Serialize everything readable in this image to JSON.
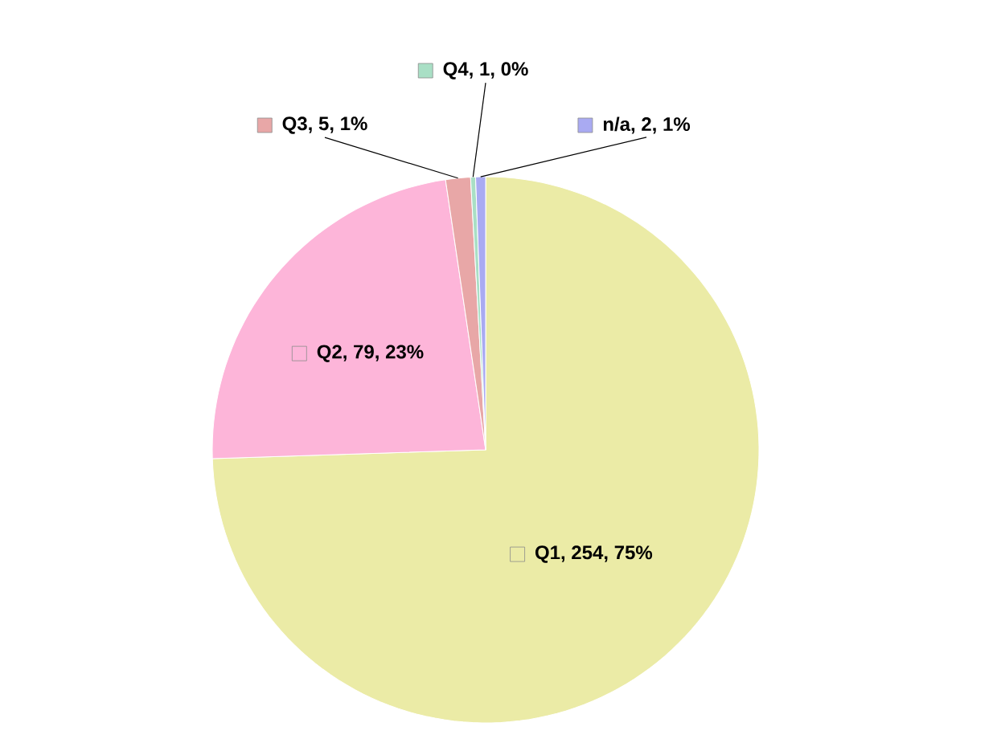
{
  "chart_data": {
    "type": "pie",
    "categories": [
      "Q1",
      "Q2",
      "Q3",
      "Q4",
      "n/a"
    ],
    "values": [
      254,
      79,
      5,
      1,
      2
    ],
    "colors": [
      "#ebeba6",
      "#fdb5d9",
      "#e8a7a7",
      "#a9dfc5",
      "#a9aaf2"
    ],
    "value_labels": [
      ", 254, 75%",
      ", 79, 23%",
      ", 5, 1%",
      ", 1, 0%",
      ", 2, 1%"
    ],
    "legend": "top"
  }
}
